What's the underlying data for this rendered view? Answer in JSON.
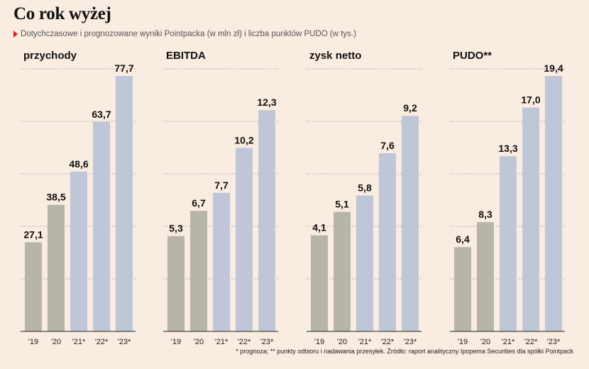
{
  "title": "Co rok wyżej",
  "subtitle": "Dotychczasowe i prognozowane wyniki Pointpacka (w mln zł) i liczba punktów PUDO (w tys.)",
  "footnote": "* prognoza; ** punkty odbioru i nadawania przesyłek. Źródło: raport analityczny Ipopema Securities dla spółki Pointpack",
  "colors": {
    "actual": "#b7b5a9",
    "forecast": "#bfc6d8",
    "grid": "#999999",
    "axis": "#222222",
    "marker": "#d42020"
  },
  "chart_data": [
    {
      "type": "bar",
      "title": "przychody",
      "categories": [
        "'19",
        "'20",
        "'21*",
        "'22*",
        "'23*"
      ],
      "values": [
        27.1,
        38.5,
        48.6,
        63.7,
        77.7
      ],
      "labels": [
        "27,1",
        "38,5",
        "48,6",
        "63,7",
        "77,7"
      ],
      "forecast": [
        false,
        false,
        true,
        true,
        true
      ],
      "ylim": [
        0,
        77.7
      ],
      "grid": true
    },
    {
      "type": "bar",
      "title": "EBITDA",
      "categories": [
        "'19",
        "'20",
        "'21*",
        "'22*",
        "'23*"
      ],
      "values": [
        5.3,
        6.7,
        7.7,
        10.2,
        12.3
      ],
      "labels": [
        "5,3",
        "6,7",
        "7,7",
        "10,2",
        "12,3"
      ],
      "forecast": [
        false,
        false,
        true,
        true,
        true
      ],
      "ylim": [
        0,
        14.2
      ],
      "grid": true
    },
    {
      "type": "bar",
      "title": "zysk netto",
      "categories": [
        "'19",
        "'20",
        "'21*",
        "'22*",
        "'23*"
      ],
      "values": [
        4.1,
        5.1,
        5.8,
        7.6,
        9.2
      ],
      "labels": [
        "4,1",
        "5,1",
        "5,8",
        "7,6",
        "9,2"
      ],
      "forecast": [
        false,
        false,
        true,
        true,
        true
      ],
      "ylim": [
        0,
        10.9
      ],
      "grid": true
    },
    {
      "type": "bar",
      "title": "PUDO**",
      "categories": [
        "'19",
        "'20",
        "'21*",
        "'22*",
        "'23*"
      ],
      "values": [
        6.4,
        8.3,
        13.3,
        17.0,
        19.4
      ],
      "labels": [
        "6,4",
        "8,3",
        "13,3",
        "17,0",
        "19,4"
      ],
      "forecast": [
        false,
        false,
        true,
        true,
        true
      ],
      "ylim": [
        0,
        19.4
      ],
      "grid": true
    }
  ]
}
